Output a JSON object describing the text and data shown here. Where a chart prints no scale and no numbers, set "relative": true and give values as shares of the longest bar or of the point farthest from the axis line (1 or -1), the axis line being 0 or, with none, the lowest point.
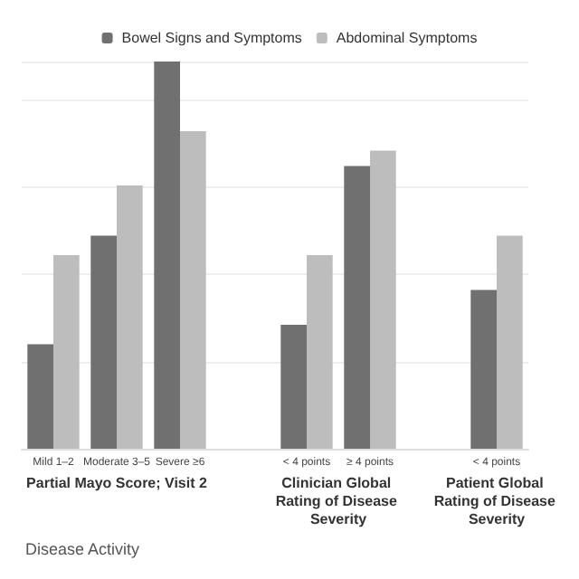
{
  "chart_data": {
    "type": "bar",
    "relative": true,
    "xlabel": "Disease Activity",
    "categories": [
      "Mild 1–2",
      "Moderate 3–5",
      "Severe ≥6",
      null,
      "< 4 points",
      "≥ 4 points",
      null,
      "< 4 points"
    ],
    "series": [
      {
        "name": "Bowel Signs and Symptoms",
        "color": "#707070",
        "values": [
          0.27,
          0.55,
          1,
          null,
          0.32,
          0.73,
          null,
          0.41
        ]
      },
      {
        "name": "Abdominal Symptoms",
        "color": "#bdbdbd",
        "values": [
          0.5,
          0.68,
          0.82,
          null,
          0.5,
          0.77,
          null,
          0.55
        ]
      }
    ],
    "annotations": [
      "Partial Mayo Score; Visit 2",
      "Clinician Global Rating of Disease Severity",
      "Patient Global Rating of Disease Severity"
    ],
    "grid": "y",
    "legend": "top"
  }
}
